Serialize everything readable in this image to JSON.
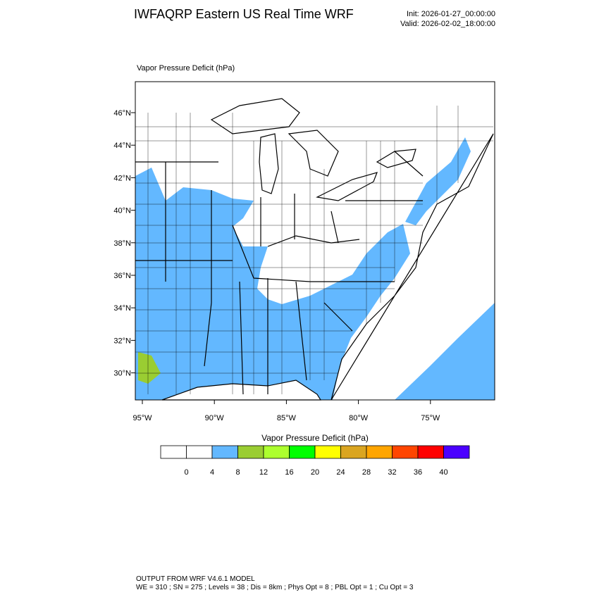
{
  "header": {
    "title": "IWFAQRP Eastern US Real Time WRF",
    "init": "Init: 2026-01-27_00:00:00",
    "valid": "Valid: 2026-02-02_18:00:00"
  },
  "map": {
    "title": "Vapor Pressure Deficit   (hPa)",
    "lat_labels": [
      "46°N",
      "44°N",
      "42°N",
      "40°N",
      "38°N",
      "36°N",
      "34°N",
      "32°N",
      "30°N"
    ],
    "lon_labels": [
      "95°W",
      "90°W",
      "85°W",
      "80°W",
      "75°W"
    ]
  },
  "colorbar": {
    "title": "Vapor Pressure Deficit  (hPa)",
    "colors": [
      "#ffffff",
      "#ffffff",
      "#63b8ff",
      "#9acd32",
      "#adff2f",
      "#00ff00",
      "#ffff00",
      "#daa520",
      "#ffa500",
      "#ff4500",
      "#ff0000",
      "#4b00ff"
    ],
    "ticks": [
      0,
      4,
      8,
      12,
      16,
      20,
      24,
      28,
      32,
      36,
      40
    ]
  },
  "footer": {
    "line1": "OUTPUT FROM WRF V4.6.1 MODEL",
    "line2": "WE = 310 ; SN = 275 ; Levels = 38 ; Dis = 8km ; Phys Opt = 8 ; PBL Opt = 1 ; Cu Opt = 3"
  }
}
